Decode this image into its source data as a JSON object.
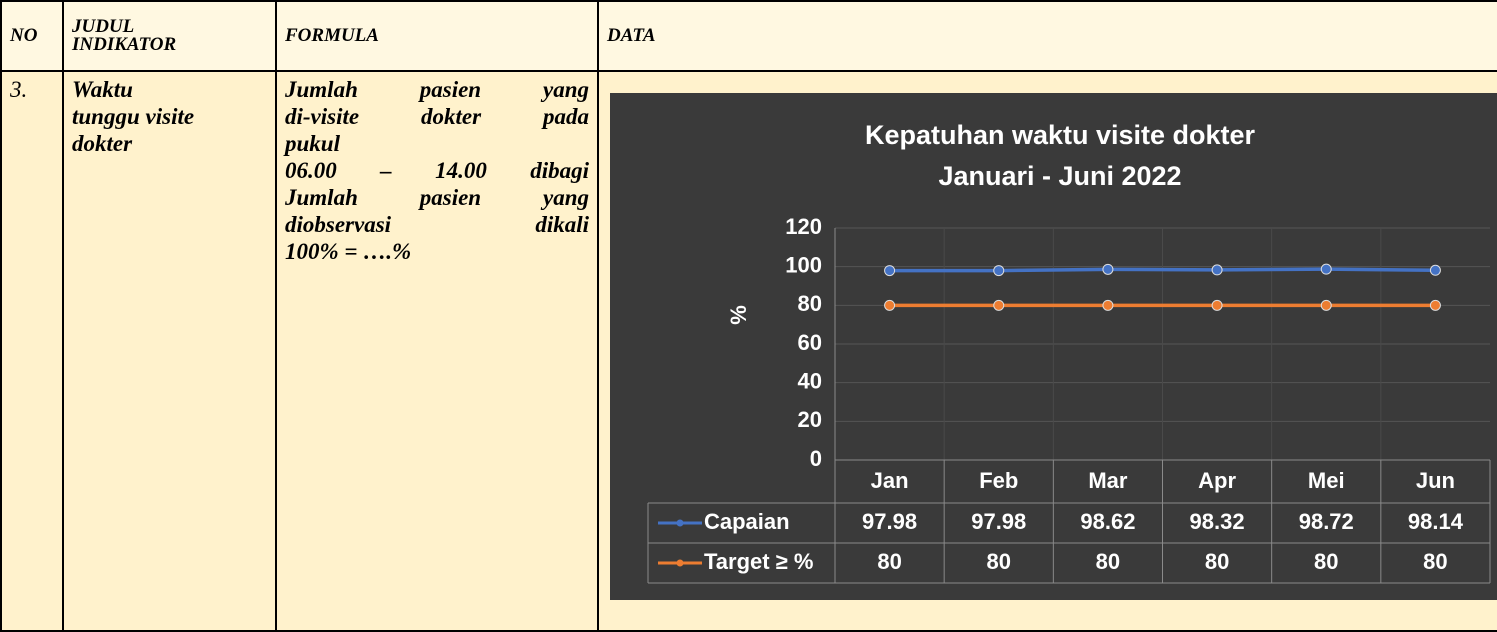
{
  "table": {
    "headers": [
      "NO",
      [
        "JUDUL",
        "INDIKATOR"
      ],
      "FORMULA",
      "DATA"
    ],
    "row": {
      "no": "3.",
      "judul": [
        "Waktu",
        "tunggu visite",
        "dokter"
      ],
      "formula": [
        "Jumlah pasien yang",
        "di-visite dokter pada",
        "pukul",
        "06.00 – 14.00 dibagi",
        "Jumlah pasien yang",
        "diobservasi dikali",
        "100% = ….%"
      ]
    }
  },
  "chart_data": {
    "type": "line",
    "title": [
      "Kepatuhan waktu visite dokter",
      "Januari - Juni 2022"
    ],
    "y_label": "%",
    "categories": [
      "Jan",
      "Feb",
      "Mar",
      "Apr",
      "Mei",
      "Jun"
    ],
    "series": [
      {
        "name": "Capaian",
        "color": "#4472c4",
        "values": [
          97.98,
          97.98,
          98.62,
          98.32,
          98.72,
          98.14
        ]
      },
      {
        "name": "Target ≥ %",
        "color": "#ed7d31",
        "values": [
          80,
          80,
          80,
          80,
          80,
          80
        ]
      }
    ],
    "ylim": [
      0,
      120
    ],
    "yticks": [
      0,
      20,
      40,
      60,
      80,
      100,
      120
    ],
    "grid": true,
    "data_table": true
  }
}
